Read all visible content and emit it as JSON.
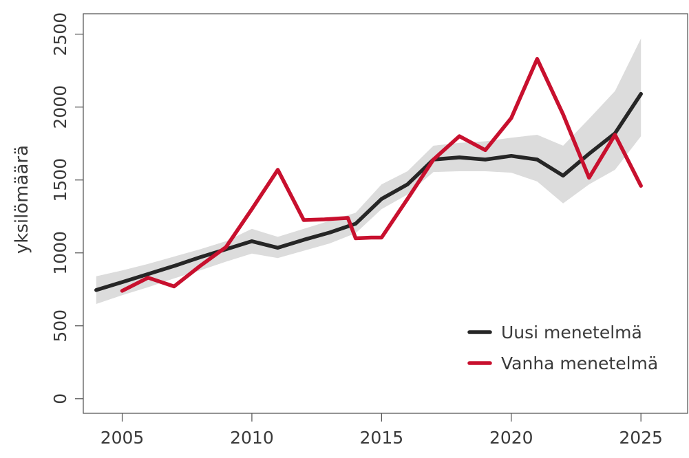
{
  "chart_data": {
    "type": "line",
    "title": "",
    "xlabel": "",
    "ylabel": "yksilömäärä",
    "xlim": [
      2003.5,
      2026.8
    ],
    "ylim": [
      -100,
      2640
    ],
    "xticks": [
      2005,
      2010,
      2015,
      2020,
      2025
    ],
    "yticks": [
      0,
      500,
      1000,
      1500,
      2000,
      2500
    ],
    "grid": false,
    "legend_position": "bottom-right",
    "band": {
      "x": [
        2004,
        2005,
        2006,
        2007,
        2008,
        2009,
        2010,
        2011,
        2012,
        2013,
        2014,
        2015,
        2016,
        2017,
        2018,
        2019,
        2020,
        2021,
        2022,
        2023,
        2024,
        2025
      ],
      "lower": [
        650,
        710,
        765,
        825,
        880,
        940,
        995,
        965,
        1015,
        1065,
        1135,
        1300,
        1400,
        1555,
        1560,
        1560,
        1550,
        1490,
        1340,
        1470,
        1570,
        1800
      ],
      "upper": [
        840,
        880,
        925,
        975,
        1025,
        1080,
        1165,
        1110,
        1165,
        1220,
        1275,
        1470,
        1560,
        1735,
        1755,
        1765,
        1790,
        1810,
        1735,
        1920,
        2110,
        2470
      ],
      "color": "#dcdcdc"
    },
    "series": [
      {
        "name": "Uusi menetelmä",
        "color": "#262626",
        "x": [
          2004,
          2005,
          2006,
          2007,
          2008,
          2009,
          2010,
          2011,
          2012,
          2013,
          2014,
          2015,
          2016,
          2017,
          2018,
          2019,
          2020,
          2021,
          2022,
          2023,
          2024,
          2025
        ],
        "values": [
          745,
          800,
          855,
          910,
          970,
          1025,
          1080,
          1035,
          1090,
          1140,
          1200,
          1370,
          1470,
          1640,
          1655,
          1640,
          1665,
          1640,
          1530,
          1680,
          1820,
          2090
        ]
      },
      {
        "name": "Vanha menetelmä",
        "color": "#c8102e",
        "x": [
          2005,
          2006,
          2007,
          2008,
          2009,
          2010,
          2011,
          2012,
          2012.8,
          2013.7,
          2014,
          2014.6,
          2015,
          2016,
          2017,
          2018,
          2019,
          2020,
          2021,
          2022,
          2023,
          2024,
          2025
        ],
        "values": [
          740,
          830,
          770,
          910,
          1040,
          1300,
          1570,
          1225,
          1230,
          1240,
          1100,
          1105,
          1105,
          1370,
          1640,
          1800,
          1705,
          1925,
          2330,
          1950,
          1515,
          1810,
          1460
        ]
      }
    ]
  }
}
